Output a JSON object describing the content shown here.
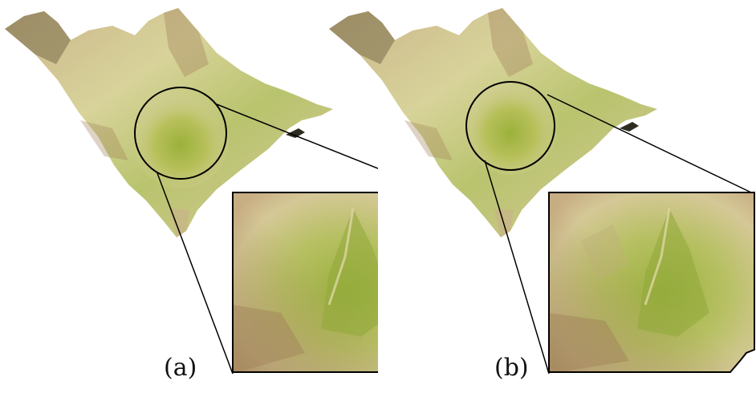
{
  "panels": [
    {
      "id": "a",
      "label": "(a)"
    },
    {
      "id": "b",
      "label": "(b)"
    }
  ],
  "colors": {
    "terrain_light": "#e6d7a8",
    "terrain_mid": "#cbbf7c",
    "terrain_green": "#9fb84a",
    "terrain_brown": "#a78a5d",
    "terrain_dark": "#3d3a2a",
    "outline": "#000000"
  }
}
